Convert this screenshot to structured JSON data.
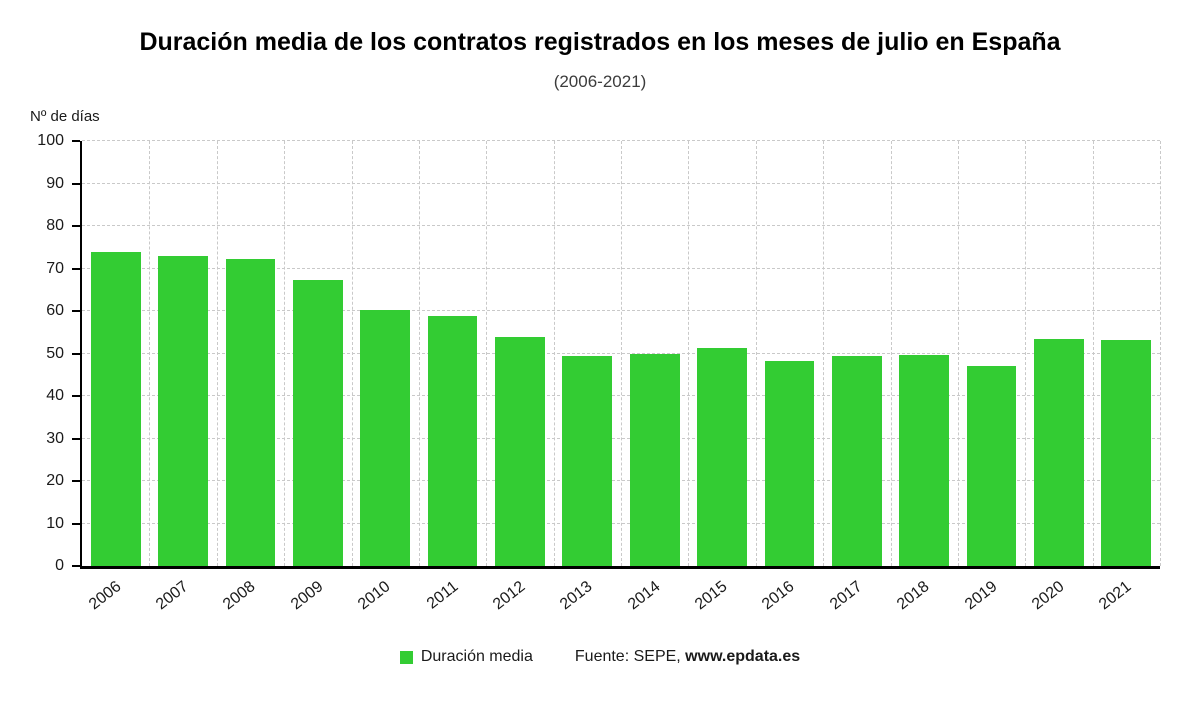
{
  "header": {
    "title": "Duración media de los contratos registrados en los meses de julio en España",
    "subtitle": "(2006-2021)"
  },
  "y_axis_title": "Nº de días",
  "legend": {
    "label": "Duración media"
  },
  "source": {
    "prefix": "Fuente: SEPE, ",
    "site": "www.epdata.es"
  },
  "colors": {
    "bar": "#33cc33",
    "grid": "#c9c9c9",
    "axis": "#000000"
  },
  "chart_data": {
    "type": "bar",
    "title": "Duración media de los contratos registrados en los meses de julio en España",
    "subtitle": "(2006-2021)",
    "xlabel": "",
    "ylabel": "Nº de días",
    "categories": [
      "2006",
      "2007",
      "2008",
      "2009",
      "2010",
      "2011",
      "2012",
      "2013",
      "2014",
      "2015",
      "2016",
      "2017",
      "2018",
      "2019",
      "2020",
      "2021"
    ],
    "values": [
      73.9,
      73.0,
      72.3,
      67.4,
      60.2,
      58.9,
      53.9,
      49.3,
      49.9,
      51.4,
      48.3,
      49.3,
      49.7,
      47.0,
      53.3,
      53.1
    ],
    "ylim": [
      0,
      100
    ],
    "yticks": [
      0,
      10,
      20,
      30,
      40,
      50,
      60,
      70,
      80,
      90,
      100
    ],
    "legend": [
      "Duración media"
    ],
    "legend_position": "bottom",
    "grid": "dashed",
    "bar_color": "#33cc33",
    "source": "Fuente: SEPE, www.epdata.es"
  }
}
